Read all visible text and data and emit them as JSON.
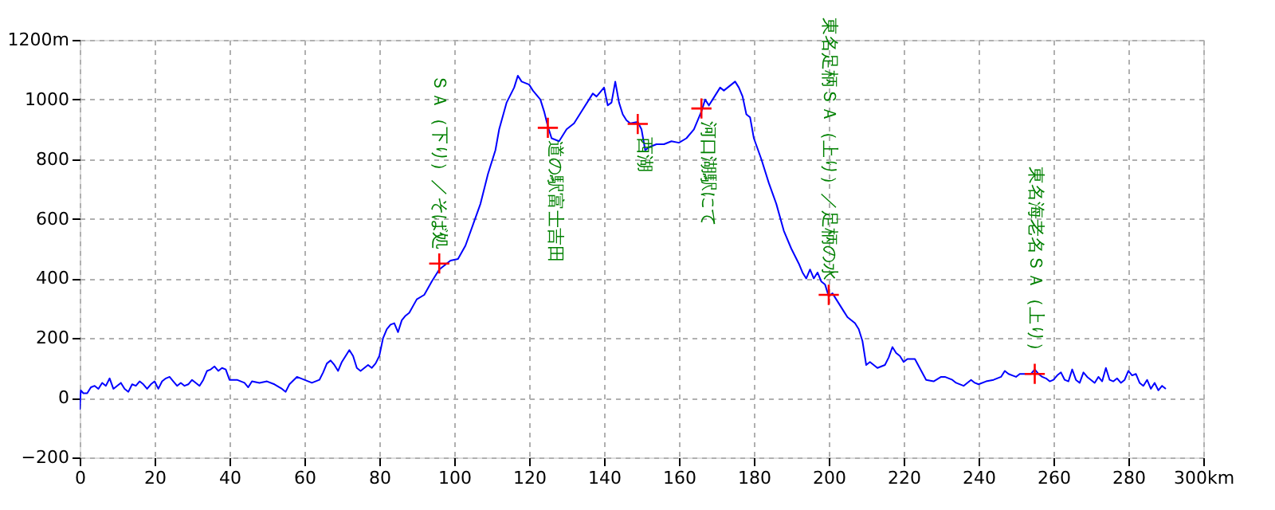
{
  "chart_data": {
    "type": "line",
    "x": [
      0,
      0.3,
      1,
      2,
      3,
      4,
      5,
      6,
      7,
      8,
      9,
      10,
      11,
      12,
      13,
      14,
      15,
      16,
      17,
      18,
      19,
      20,
      21,
      22,
      23,
      24,
      25,
      26,
      27,
      28,
      29,
      30,
      31,
      32,
      33,
      34,
      35,
      36,
      37,
      38,
      39,
      40,
      42,
      44,
      45,
      46,
      48,
      50,
      52,
      54,
      55,
      56,
      58,
      60,
      62,
      64,
      65,
      66,
      67,
      68,
      69,
      70,
      72,
      73,
      74,
      75,
      76,
      77,
      78,
      79,
      80,
      81,
      82,
      83,
      84,
      85,
      86,
      87,
      88,
      90,
      92,
      94,
      96,
      97,
      99,
      101,
      103,
      105,
      107,
      109,
      111,
      112,
      114,
      116,
      117,
      118,
      120,
      121,
      123,
      124,
      125,
      126,
      128,
      130,
      132,
      134,
      136,
      137,
      138,
      140,
      141,
      142,
      143,
      144,
      145,
      146,
      147,
      149,
      150,
      151,
      152,
      154,
      156,
      158,
      160,
      162,
      164,
      166,
      167,
      168,
      169,
      171,
      172,
      174,
      175,
      176,
      177,
      178,
      179,
      180,
      182,
      184,
      186,
      188,
      190,
      192,
      193,
      194,
      195,
      196,
      197,
      198,
      199,
      200,
      201,
      202,
      204,
      205,
      207,
      208,
      209,
      210,
      211,
      212,
      213,
      215,
      216,
      217,
      218,
      219,
      220,
      221,
      223,
      226,
      228,
      230,
      231,
      233,
      234,
      236,
      238,
      239,
      240,
      242,
      244,
      246,
      247,
      248,
      250,
      251,
      252,
      254,
      255,
      256,
      257,
      258,
      259,
      260,
      261,
      262,
      263,
      264,
      265,
      266,
      267,
      268,
      269,
      270,
      271,
      272,
      273,
      274,
      275,
      276,
      277,
      278,
      279,
      280,
      281,
      282,
      283,
      284,
      285,
      286,
      287,
      288,
      289,
      290
    ],
    "series": [
      {
        "color": "#0000ff",
        "values": [
          -40,
          25,
          15,
          15,
          35,
          40,
          30,
          50,
          40,
          65,
          30,
          40,
          50,
          30,
          20,
          45,
          40,
          55,
          45,
          30,
          45,
          55,
          30,
          55,
          65,
          70,
          55,
          40,
          50,
          40,
          45,
          60,
          50,
          40,
          60,
          90,
          95,
          105,
          90,
          100,
          95,
          60,
          60,
          50,
          35,
          55,
          50,
          55,
          45,
          30,
          20,
          45,
          70,
          60,
          50,
          60,
          85,
          115,
          125,
          110,
          90,
          120,
          160,
          140,
          100,
          90,
          100,
          110,
          100,
          115,
          140,
          200,
          230,
          245,
          250,
          220,
          260,
          275,
          285,
          330,
          345,
          390,
          430,
          440,
          460,
          465,
          510,
          580,
          650,
          750,
          830,
          900,
          990,
          1040,
          1080,
          1060,
          1050,
          1030,
          1000,
          960,
          910,
          870,
          860,
          900,
          920,
          960,
          1000,
          1020,
          1010,
          1040,
          980,
          990,
          1060,
          990,
          950,
          930,
          920,
          925,
          900,
          830,
          840,
          850,
          850,
          860,
          855,
          870,
          900,
          960,
          1000,
          980,
          1000,
          1040,
          1030,
          1050,
          1060,
          1040,
          1010,
          950,
          940,
          870,
          800,
          720,
          650,
          560,
          500,
          450,
          420,
          400,
          430,
          400,
          420,
          390,
          380,
          340,
          350,
          330,
          290,
          270,
          250,
          230,
          190,
          110,
          120,
          110,
          100,
          110,
          135,
          170,
          150,
          140,
          120,
          130,
          130,
          60,
          55,
          70,
          70,
          60,
          50,
          40,
          60,
          50,
          45,
          55,
          60,
          70,
          90,
          80,
          70,
          80,
          80,
          80,
          95,
          80,
          70,
          65,
          55,
          60,
          75,
          85,
          60,
          55,
          95,
          60,
          50,
          85,
          70,
          60,
          50,
          70,
          55,
          100,
          60,
          55,
          65,
          50,
          60,
          90,
          75,
          80,
          50,
          40,
          60,
          30,
          50,
          25,
          40,
          30
        ]
      },
      {
        "type": "scatter",
        "color": "#ff0000",
        "marker": "cross",
        "x": [
          96,
          125,
          149,
          166,
          200,
          255
        ],
        "values": [
          450,
          905,
          918,
          970,
          345,
          80
        ]
      }
    ],
    "annotations": [
      {
        "text": "ＳＡ（下り）／そば処",
        "x": 96,
        "y": 450
      },
      {
        "text": "道の駅富士吉田",
        "x": 125,
        "y": 905
      },
      {
        "text": "西湖",
        "x": 149,
        "y": 918
      },
      {
        "text": "河口湖駅にて",
        "x": 166,
        "y": 970
      },
      {
        "text": "東名足柄ＳＡ（上り）／足柄の水",
        "x": 200,
        "y": 345
      },
      {
        "text": "東名海老名ＳＡ（上り）",
        "x": 255,
        "y": 80
      }
    ],
    "xlim": [
      0,
      300
    ],
    "xticks": [
      0,
      20,
      40,
      60,
      80,
      100,
      120,
      140,
      160,
      180,
      200,
      220,
      240,
      260,
      280,
      {
        "value": 300,
        "label": "300km"
      }
    ],
    "ylim": [
      -200,
      1200
    ],
    "yticks": [
      -200,
      0,
      200,
      400,
      600,
      800,
      1000,
      {
        "value": 1200,
        "label": "1200m"
      }
    ],
    "grid": true
  }
}
